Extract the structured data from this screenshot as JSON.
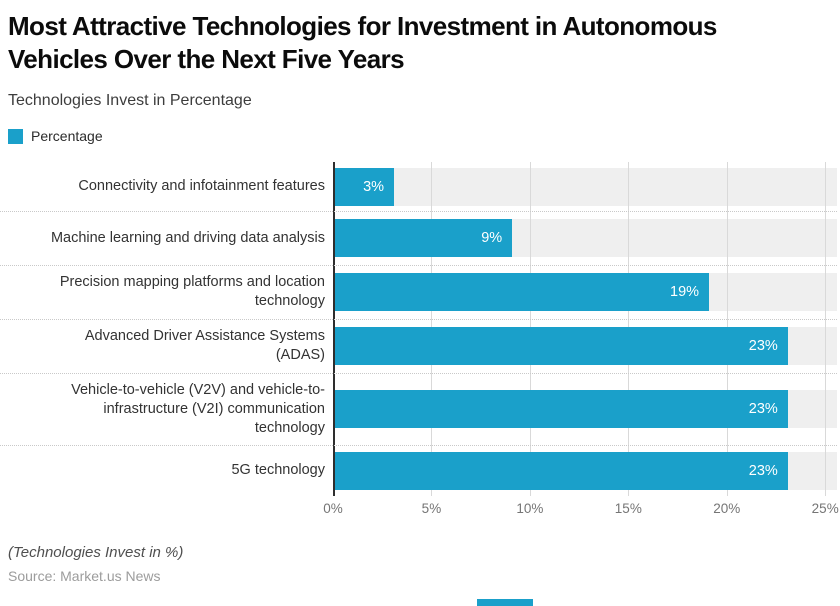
{
  "header": {
    "title_lines": [
      "Most Attractive Technologies for Investment in Autonomous",
      "Vehicles Over the Next Five Years"
    ],
    "subtitle": "Technologies Invest in Percentage"
  },
  "legend": {
    "label": "Percentage"
  },
  "chart_data": {
    "type": "bar",
    "orientation": "horizontal",
    "title": "Most Attractive Technologies for Investment in Autonomous Vehicles Over the Next Five Years",
    "subtitle": "Technologies Invest in Percentage",
    "series_name": "Percentage",
    "categories": [
      "Connectivity and infotainment features",
      "Machine learning and driving data analysis",
      "Precision mapping platforms and location technology",
      "Advanced Driver Assistance Systems (ADAS)",
      "Vehicle-to-vehicle (V2V) and vehicle-to-infrastructure (V2I) communication technology",
      "5G technology"
    ],
    "categories_wrapped": [
      [
        "Connectivity and infotainment features"
      ],
      [
        "Machine learning and driving data analysis"
      ],
      [
        "Precision mapping platforms and location",
        "technology"
      ],
      [
        "Advanced Driver Assistance Systems",
        "(ADAS)"
      ],
      [
        "Vehicle-to-vehicle (V2V) and vehicle-to-",
        "infrastructure (V2I) communication",
        "technology"
      ],
      [
        "5G technology"
      ]
    ],
    "values": [
      3,
      9,
      19,
      23,
      23,
      23
    ],
    "value_labels": [
      "3%",
      "9%",
      "19%",
      "23%",
      "23%",
      "23%"
    ],
    "x_ticks": [
      {
        "value": 0,
        "label": "0%"
      },
      {
        "value": 5,
        "label": "5%"
      },
      {
        "value": 10,
        "label": "10%"
      },
      {
        "value": 15,
        "label": "15%"
      },
      {
        "value": 20,
        "label": "20%"
      },
      {
        "value": 25,
        "label": "25%"
      }
    ],
    "xlim": [
      0,
      25.6
    ],
    "grid": true,
    "legend_position": "top-left",
    "bar_color": "#1AA0CA",
    "track_color": "#EFEFEF"
  },
  "footer": {
    "note": "(Technologies Invest in %)",
    "source": "Source: Market.us News"
  }
}
